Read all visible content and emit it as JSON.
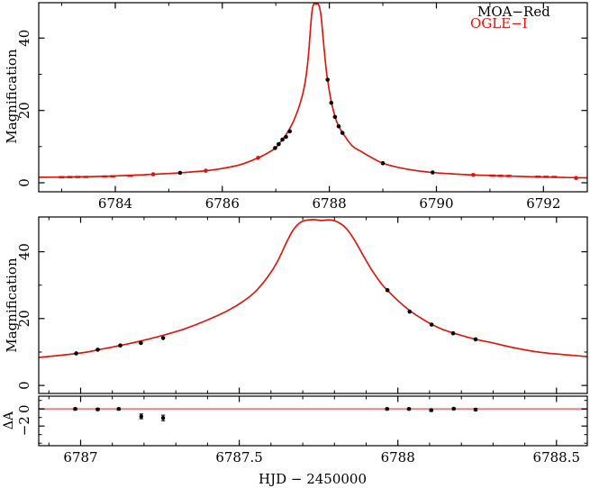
{
  "figure": {
    "xlabel": "HJD − 2450000",
    "ylabel_magnification": "Magnification",
    "ylabel_residual": "ΔA",
    "legend": {
      "items": [
        {
          "label": "MOA−Red",
          "color": "#000000"
        },
        {
          "label": "OGLE−I",
          "color": "#e3120b"
        }
      ]
    },
    "colors": {
      "model_curve_red": "#e3120b",
      "model_curve_black": "#1a0000",
      "moa_points": "#000000",
      "ogle_points": "#e3120b",
      "residual_zero_line": "#e38686",
      "frame": "#000000",
      "text": "#000000",
      "background": "#ffffff"
    }
  },
  "chart_data": [
    {
      "panel": "top_light_curve",
      "type": "line+scatter",
      "title": "",
      "xlabel": "",
      "ylabel": "Magnification",
      "xlim": [
        6782.57,
        6792.82
      ],
      "ylim": [
        -2.5,
        49.8
      ],
      "grid": false,
      "x_major_ticks": [
        6784,
        6786,
        6788,
        6790,
        6792
      ],
      "x_major_tick_labels": [
        "6784",
        "6786",
        "6788",
        "6790",
        "6792"
      ],
      "x_minor_ticks": [
        6783,
        6785,
        6787,
        6789,
        6791
      ],
      "y_major_ticks": [
        0,
        20,
        40
      ],
      "y_major_tick_labels": [
        "0",
        "20",
        "40"
      ],
      "y_minor_ticks": [
        10,
        30
      ],
      "model_curve": [
        [
          6782.57,
          1.5
        ],
        [
          6783.2,
          1.62
        ],
        [
          6783.8,
          1.78
        ],
        [
          6784.3,
          2.05
        ],
        [
          6784.71,
          2.34
        ],
        [
          6785.21,
          2.74
        ],
        [
          6785.69,
          3.33
        ],
        [
          6786.0,
          3.95
        ],
        [
          6786.35,
          5.05
        ],
        [
          6786.67,
          6.89
        ],
        [
          6786.87,
          8.4
        ],
        [
          6787.0,
          9.7
        ],
        [
          6787.06,
          10.75
        ],
        [
          6787.125,
          11.95
        ],
        [
          6787.19,
          13.3
        ],
        [
          6787.26,
          15.0
        ],
        [
          6787.33,
          17.0
        ],
        [
          6787.4,
          19.6
        ],
        [
          6787.46,
          22.2
        ],
        [
          6787.51,
          25.0
        ],
        [
          6787.55,
          28.0
        ],
        [
          6787.59,
          32.5
        ],
        [
          6787.62,
          37.0
        ],
        [
          6787.65,
          43.0
        ],
        [
          6787.67,
          46.5
        ],
        [
          6787.69,
          48.6
        ],
        [
          6787.71,
          49.4
        ],
        [
          6787.735,
          49.62
        ],
        [
          6787.76,
          49.35
        ],
        [
          6787.785,
          49.55
        ],
        [
          6787.81,
          48.9
        ],
        [
          6787.835,
          47.2
        ],
        [
          6787.86,
          44.0
        ],
        [
          6787.89,
          39.0
        ],
        [
          6787.92,
          34.2
        ],
        [
          6787.95,
          30.2
        ],
        [
          6787.967,
          28.5
        ],
        [
          6788.0,
          25.4
        ],
        [
          6788.037,
          22.4
        ],
        [
          6788.07,
          20.3
        ],
        [
          6788.106,
          18.3
        ],
        [
          6788.14,
          16.8
        ],
        [
          6788.174,
          15.7
        ],
        [
          6788.21,
          14.7
        ],
        [
          6788.245,
          13.8
        ],
        [
          6788.3,
          12.7
        ],
        [
          6788.36,
          11.4
        ],
        [
          6788.45,
          9.9
        ],
        [
          6788.6,
          8.6
        ],
        [
          6788.75,
          7.3
        ],
        [
          6789.0,
          5.4
        ],
        [
          6789.3,
          4.2
        ],
        [
          6789.6,
          3.4
        ],
        [
          6789.93,
          2.85
        ],
        [
          6790.3,
          2.45
        ],
        [
          6790.69,
          2.16
        ],
        [
          6791.1,
          1.95
        ],
        [
          6791.5,
          1.78
        ],
        [
          6792.0,
          1.58
        ],
        [
          6792.61,
          1.4
        ],
        [
          6792.82,
          1.36
        ]
      ],
      "series": [
        {
          "name": "MOA-Red",
          "color": "#000000",
          "marker": "dot",
          "points": [
            [
              6785.21,
              2.74
            ],
            [
              6786.986,
              9.6
            ],
            [
              6787.054,
              10.7
            ],
            [
              6787.125,
              11.95
            ],
            [
              6787.19,
              12.7
            ],
            [
              6787.26,
              14.2
            ],
            [
              6787.967,
              28.5
            ],
            [
              6788.037,
              22.1
            ],
            [
              6788.106,
              18.2
            ],
            [
              6788.174,
              15.6
            ],
            [
              6788.245,
              13.8
            ],
            [
              6789.0,
              5.4
            ],
            [
              6789.93,
              2.85
            ]
          ]
        },
        {
          "name": "OGLE-I",
          "color": "#e3120b",
          "marker": "dot",
          "points": [
            [
              6784.71,
              2.34
            ],
            [
              6785.69,
              3.33
            ],
            [
              6786.67,
              6.89
            ],
            [
              6790.69,
              2.16
            ],
            [
              6792.61,
              1.3
            ]
          ]
        },
        {
          "name": "OGLE-I dense baseline coverage",
          "color": "#e3120b",
          "marker": "dash",
          "points": [
            [
              6783.0,
              1.53
            ],
            [
              6783.15,
              1.56
            ],
            [
              6783.3,
              1.59
            ],
            [
              6783.45,
              1.62
            ],
            [
              6783.8,
              1.74
            ],
            [
              6783.95,
              1.79
            ],
            [
              6784.28,
              1.94
            ],
            [
              6791.05,
              1.96
            ],
            [
              6791.2,
              1.92
            ],
            [
              6791.35,
              1.88
            ],
            [
              6791.9,
              1.66
            ],
            [
              6792.05,
              1.63
            ],
            [
              6792.2,
              1.6
            ]
          ]
        }
      ]
    },
    {
      "panel": "zoom_light_curve",
      "type": "line+scatter",
      "title": "",
      "xlabel": "",
      "ylabel": "Magnification",
      "xlim": [
        6786.868,
        6788.597
      ],
      "ylim": [
        -2.4,
        50.4
      ],
      "grid": false,
      "model_curve_source": "top_light_curve",
      "x_major_ticks": [
        6787,
        6787.5,
        6788,
        6788.5
      ],
      "x_minor_ticks": [
        6786.9,
        6787.1,
        6787.2,
        6787.3,
        6787.4,
        6787.6,
        6787.7,
        6787.8,
        6787.9,
        6788.1,
        6788.2,
        6788.3,
        6788.4
      ],
      "y_major_ticks": [
        0,
        20,
        40
      ],
      "y_major_tick_labels": [
        "0",
        "20",
        "40"
      ],
      "y_minor_ticks": [
        10,
        30
      ],
      "series": [
        {
          "name": "MOA-Red",
          "color": "#000000",
          "marker": "dot",
          "points": [
            [
              6786.986,
              9.6
            ],
            [
              6787.054,
              10.7
            ],
            [
              6787.125,
              11.95
            ],
            [
              6787.19,
              12.7
            ],
            [
              6787.26,
              14.2
            ],
            [
              6787.967,
              28.5
            ],
            [
              6788.037,
              22.1
            ],
            [
              6788.106,
              18.2
            ],
            [
              6788.174,
              15.6
            ],
            [
              6788.245,
              13.8
            ]
          ]
        }
      ]
    },
    {
      "panel": "residuals",
      "type": "scatter",
      "title": "",
      "xlabel": "HJD − 2450000",
      "ylabel": "ΔA",
      "xlim": [
        6786.868,
        6788.597
      ],
      "ylim": [
        -4.3,
        1.5
      ],
      "grid": false,
      "x_major_ticks": [
        6787,
        6787.5,
        6788,
        6788.5
      ],
      "x_major_tick_labels": [
        "6787",
        "6787.5",
        "6788",
        "6788.5"
      ],
      "x_minor_ticks": [
        6786.9,
        6787.1,
        6787.2,
        6787.3,
        6787.4,
        6787.6,
        6787.7,
        6787.8,
        6787.9,
        6788.1,
        6788.2,
        6788.3,
        6788.4
      ],
      "y_major_ticks": [
        0,
        -2
      ],
      "y_major_tick_labels": [
        "0",
        "−2"
      ],
      "y_minor_ticks": [
        1,
        -1,
        -3,
        -4
      ],
      "zero_line": {
        "y": 0,
        "color": "#e38686"
      },
      "series": [
        {
          "name": "MOA-Red residuals",
          "color": "#000000",
          "marker": "dot-errorbar",
          "points_t_dA_err": [
            [
              6786.983,
              0.0,
              0.12
            ],
            [
              6787.054,
              -0.05,
              0.12
            ],
            [
              6787.12,
              0.0,
              0.12
            ],
            [
              6787.191,
              -0.87,
              0.28
            ],
            [
              6787.26,
              -1.05,
              0.33
            ],
            [
              6787.966,
              0.0,
              0.1
            ],
            [
              6788.035,
              0.0,
              0.1
            ],
            [
              6788.105,
              -0.15,
              0.12
            ],
            [
              6788.176,
              0.02,
              0.1
            ],
            [
              6788.245,
              -0.08,
              0.12
            ]
          ]
        }
      ]
    }
  ]
}
